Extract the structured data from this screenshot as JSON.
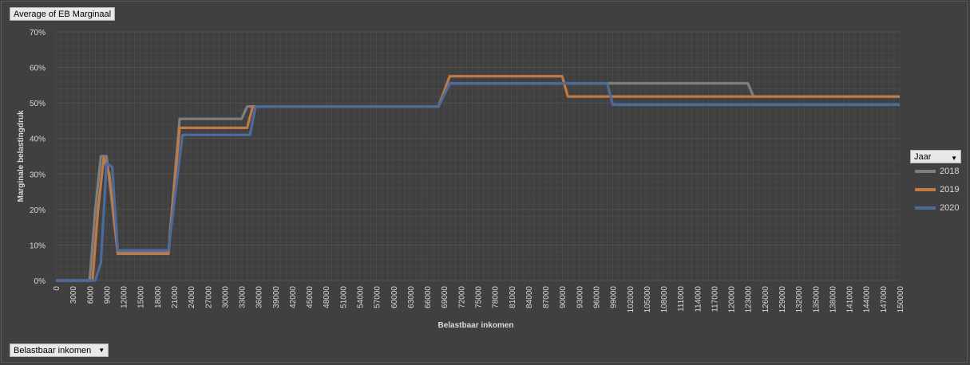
{
  "field_buttons": {
    "value_field": "Average of EB Marginaal",
    "axis_field": "Belastbaar inkomen",
    "legend_field": "Jaar"
  },
  "colors": {
    "background": "#404040",
    "grid": "#5e5e5e",
    "text": "#d9d9d9",
    "s2018": "#7f7f7f",
    "s2019": "#c07a48",
    "s2020": "#4e6a9a"
  },
  "chart_data": {
    "type": "line",
    "title": "",
    "xlabel": "Belastbaar inkomen",
    "ylabel": "Marginale belastingdruk",
    "ylim": [
      0,
      0.7
    ],
    "xlim": [
      0,
      150000
    ],
    "y_ticks": [
      "0%",
      "10%",
      "20%",
      "30%",
      "40%",
      "50%",
      "60%",
      "70%"
    ],
    "x_ticks": [
      "0",
      "3000",
      "6000",
      "9000",
      "12000",
      "15000",
      "18000",
      "21000",
      "24000",
      "27000",
      "30000",
      "33000",
      "36000",
      "39000",
      "42000",
      "45000",
      "48000",
      "51000",
      "54000",
      "57000",
      "60000",
      "63000",
      "66000",
      "69000",
      "72000",
      "75000",
      "78000",
      "81000",
      "84000",
      "87000",
      "90000",
      "93000",
      "96000",
      "99000",
      "102000",
      "105000",
      "108000",
      "111000",
      "114000",
      "117000",
      "120000",
      "123000",
      "126000",
      "129000",
      "132000",
      "135000",
      "138000",
      "141000",
      "144000",
      "147000",
      "150000"
    ],
    "legend_position": "right",
    "grid": true,
    "series": [
      {
        "name": "2018",
        "x": [
          0,
          6000,
          7000,
          8000,
          9000,
          11000,
          20000,
          22000,
          33000,
          34000,
          68000,
          70000,
          123000,
          124000,
          150000
        ],
        "y": [
          0,
          0,
          0.2,
          0.35,
          0.35,
          0.08,
          0.08,
          0.455,
          0.455,
          0.49,
          0.49,
          0.555,
          0.555,
          0.518,
          0.518
        ]
      },
      {
        "name": "2019",
        "x": [
          0,
          6500,
          7500,
          8500,
          9500,
          11000,
          20000,
          22000,
          34000,
          35000,
          68000,
          70000,
          90000,
          91000,
          150000
        ],
        "y": [
          0,
          0,
          0.2,
          0.345,
          0.3,
          0.075,
          0.075,
          0.43,
          0.43,
          0.49,
          0.49,
          0.575,
          0.575,
          0.518,
          0.518
        ]
      },
      {
        "name": "2020",
        "x": [
          0,
          7000,
          8000,
          9000,
          10000,
          11000,
          20000,
          22500,
          34500,
          35500,
          68000,
          70000,
          98000,
          99000,
          150000
        ],
        "y": [
          0,
          0,
          0.05,
          0.33,
          0.32,
          0.085,
          0.085,
          0.41,
          0.41,
          0.49,
          0.49,
          0.555,
          0.555,
          0.495,
          0.495
        ]
      }
    ]
  }
}
